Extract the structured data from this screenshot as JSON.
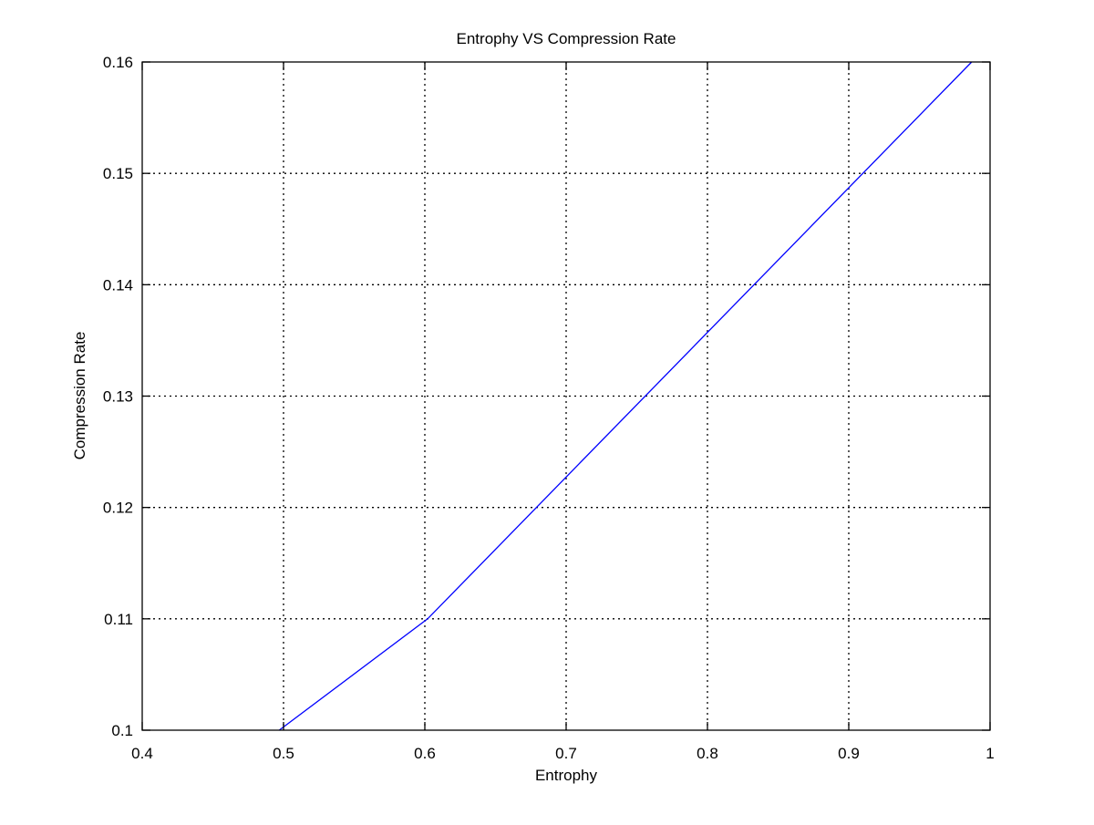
{
  "chart_data": {
    "type": "line",
    "title": "Entrophy VS Compression Rate",
    "xlabel": "Entrophy",
    "ylabel": "Compression Rate",
    "xlim": [
      0.4,
      1
    ],
    "ylim": [
      0.1,
      0.16
    ],
    "xticks": [
      0.4,
      0.5,
      0.6,
      0.7,
      0.8,
      0.9,
      1
    ],
    "xtick_labels": [
      "0.4",
      "0.5",
      "0.6",
      "0.7",
      "0.8",
      "0.9",
      "1"
    ],
    "yticks": [
      0.1,
      0.11,
      0.12,
      0.13,
      0.14,
      0.15,
      0.16
    ],
    "ytick_labels": [
      "0.1",
      "0.11",
      "0.12",
      "0.13",
      "0.14",
      "0.15",
      "0.16"
    ],
    "grid": true,
    "legend": null,
    "series": [
      {
        "color": "#0000ff",
        "x": [
          0.497,
          0.602,
          0.987
        ],
        "y": [
          0.1,
          0.11,
          0.16
        ]
      }
    ]
  }
}
